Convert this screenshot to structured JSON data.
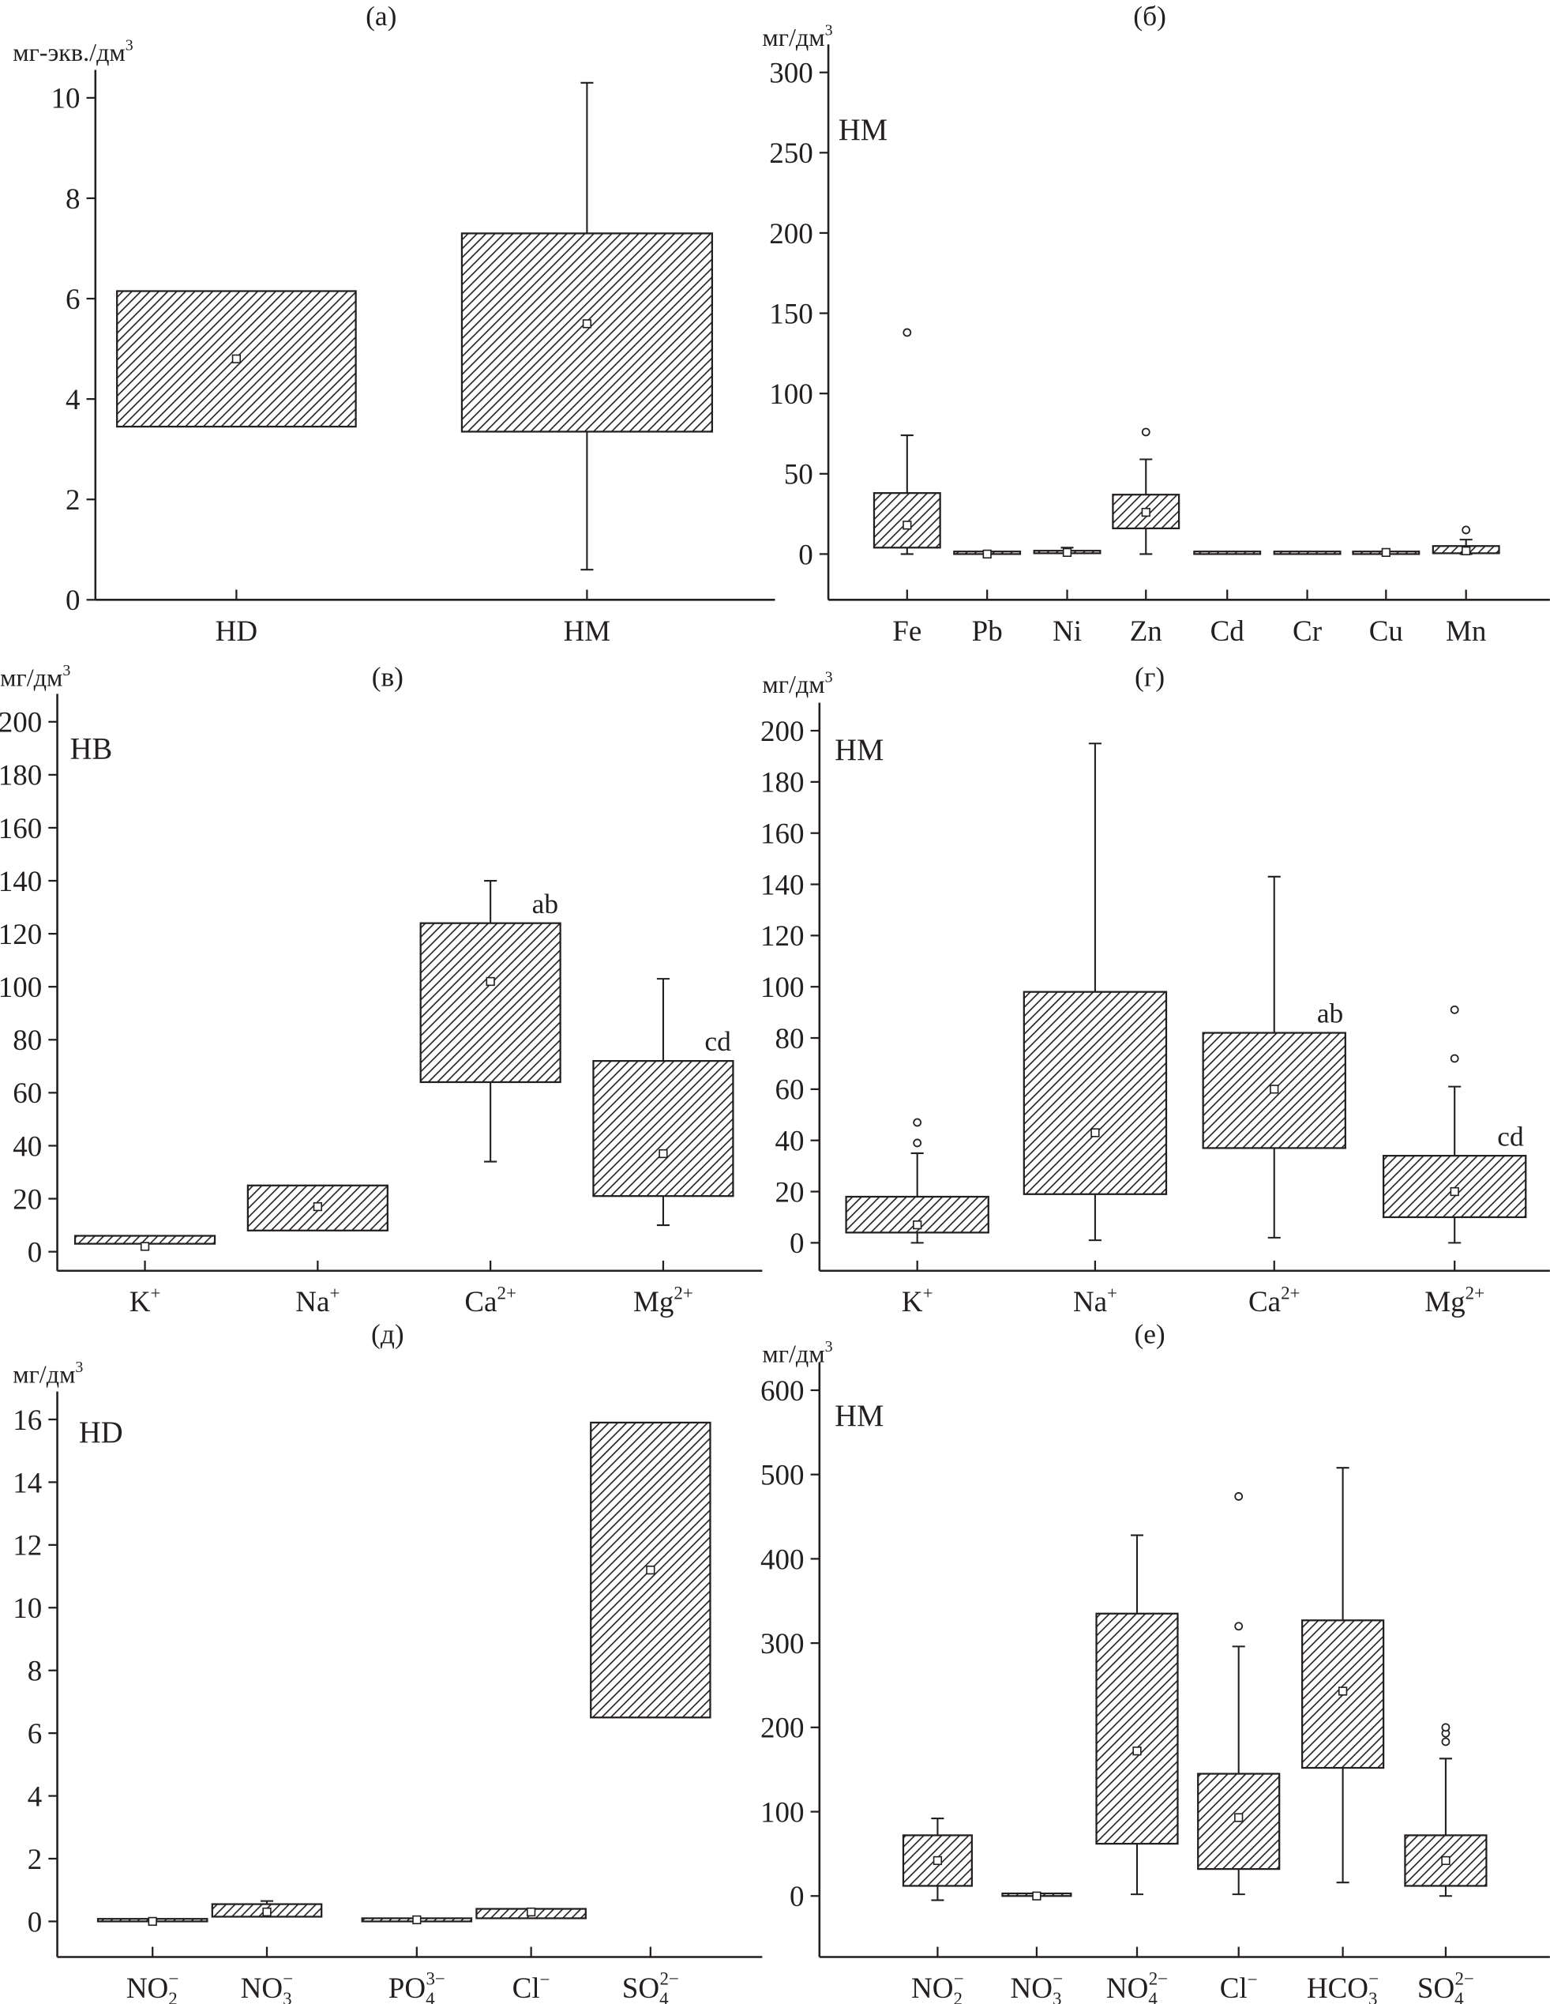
{
  "chart_data": [
    {
      "type": "box",
      "title": "(а)",
      "ylabel": {
        "base": "мг-экв./дм",
        "sup": "3"
      },
      "group_label": "",
      "ylim": [
        0,
        10.5
      ],
      "yticks": [
        0,
        2,
        4,
        6,
        8,
        10
      ],
      "categories": [
        {
          "base": "HD"
        },
        {
          "base": "HM"
        }
      ],
      "boxes": [
        {
          "q1": 3.45,
          "q3": 6.15,
          "mean": 4.8
        },
        {
          "q1": 3.35,
          "q3": 7.3,
          "mean": 5.5,
          "whisker_low": 0.6,
          "whisker_high": 10.3
        }
      ]
    },
    {
      "type": "box",
      "title": "(б)",
      "ylabel": {
        "base": "мг/дм",
        "sup": "3"
      },
      "group_label": "HM",
      "ylim": [
        -28,
        300
      ],
      "yticks": [
        0,
        50,
        100,
        150,
        200,
        250,
        300
      ],
      "categories": [
        {
          "base": "Fe"
        },
        {
          "base": "Pb"
        },
        {
          "base": "Ni"
        },
        {
          "base": "Zn"
        },
        {
          "base": "Cd"
        },
        {
          "base": "Cr"
        },
        {
          "base": "Cu"
        },
        {
          "base": "Mn"
        }
      ],
      "boxes": [
        {
          "q1": 4,
          "q3": 38,
          "mean": 18,
          "whisker_low": 0,
          "whisker_high": 74,
          "outliers": [
            138
          ]
        },
        {
          "q1": 0,
          "q3": 0,
          "mean": 0
        },
        {
          "q1": 0.5,
          "q3": 2,
          "mean": 1,
          "whisker_high": 4
        },
        {
          "q1": 16,
          "q3": 37,
          "mean": 26,
          "whisker_low": 0,
          "whisker_high": 59,
          "outliers": [
            76
          ]
        },
        {
          "q1": 0,
          "q3": 0
        },
        {
          "q1": 0,
          "q3": 0
        },
        {
          "q1": 0,
          "q3": 1,
          "mean": 1
        },
        {
          "q1": 0.5,
          "q3": 5,
          "mean": 2,
          "whisker_low": 0,
          "whisker_high": 9,
          "outliers": [
            15
          ]
        }
      ]
    },
    {
      "type": "box",
      "title": "(в)",
      "ylabel": {
        "base": "мг/дм",
        "sup": "3"
      },
      "group_label": "НВ",
      "ylim": [
        -8,
        200
      ],
      "yticks": [
        0,
        20,
        40,
        60,
        80,
        100,
        120,
        140,
        160,
        180,
        200
      ],
      "categories": [
        {
          "base": "K",
          "sup": "+"
        },
        {
          "base": "Na",
          "sup": "+"
        },
        {
          "base": "Ca",
          "sup": "2+"
        },
        {
          "base": "Mg",
          "sup": "2+"
        }
      ],
      "boxes": [
        {
          "q1": 3,
          "q3": 6,
          "mean": 2
        },
        {
          "q1": 8,
          "q3": 25,
          "mean": 17
        },
        {
          "q1": 64,
          "q3": 124,
          "mean": 102,
          "whisker_low": 34,
          "whisker_high": 140,
          "annotation": "ab"
        },
        {
          "q1": 21,
          "q3": 72,
          "mean": 37,
          "whisker_low": 10,
          "whisker_high": 103,
          "annotation": "cd"
        }
      ]
    },
    {
      "type": "box",
      "title": "(г)",
      "ylabel": {
        "base": "мг/дм",
        "sup": "3"
      },
      "group_label": "HM",
      "ylim": [
        -10,
        200
      ],
      "yticks": [
        0,
        20,
        40,
        60,
        80,
        100,
        120,
        140,
        160,
        180,
        200
      ],
      "categories": [
        {
          "base": "K",
          "sup": "+"
        },
        {
          "base": "Na",
          "sup": "+"
        },
        {
          "base": "Ca",
          "sup": "2+"
        },
        {
          "base": "Mg",
          "sup": "2+"
        }
      ],
      "boxes": [
        {
          "q1": 4,
          "q3": 18,
          "mean": 7,
          "whisker_low": 0,
          "whisker_high": 35,
          "outliers": [
            39,
            47
          ]
        },
        {
          "q1": 19,
          "q3": 98,
          "mean": 43,
          "whisker_low": 1,
          "whisker_high": 195
        },
        {
          "q1": 37,
          "q3": 82,
          "mean": 60,
          "whisker_low": 2,
          "whisker_high": 143,
          "annotation": "ab"
        },
        {
          "q1": 10,
          "q3": 34,
          "mean": 20,
          "whisker_low": 0,
          "whisker_high": 61,
          "outliers": [
            72,
            91
          ],
          "annotation": "cd"
        }
      ]
    },
    {
      "type": "box",
      "title": "(д)",
      "ylabel": {
        "base": "мг/дм",
        "sup": "3"
      },
      "group_label": "HD",
      "ylim": [
        -1,
        16.5
      ],
      "yticks": [
        0,
        2,
        4,
        6,
        8,
        10,
        12,
        14,
        16
      ],
      "categories": [
        {
          "base": "NO",
          "sub": "2",
          "sup": "−"
        },
        {
          "base": "NO",
          "sub": "3",
          "sup": "−"
        },
        {
          "base": "PO",
          "sub": "4",
          "sup": "3−"
        },
        {
          "base": "Cl",
          "sup": "−"
        },
        {
          "base": "SO",
          "sub": "4",
          "sup": "2−"
        }
      ],
      "boxes": [
        {
          "q1": 0,
          "q3": 0,
          "mean": 0
        },
        {
          "q1": 0.15,
          "q3": 0.55,
          "mean": 0.3,
          "whisker_high": 0.65
        },
        {
          "q1": 0,
          "q3": 0.1,
          "mean": 0.05
        },
        {
          "q1": 0.1,
          "q3": 0.4,
          "mean": 0.3
        },
        {
          "q1": 6.5,
          "q3": 15.9,
          "mean": 11.2
        }
      ]
    },
    {
      "type": "box",
      "title": "(е)",
      "ylabel": {
        "base": "мг/дм",
        "sup": "3"
      },
      "group_label": "HM",
      "ylim": [
        -72,
        600
      ],
      "yticks": [
        0,
        100,
        200,
        300,
        400,
        500,
        600
      ],
      "categories": [
        {
          "base": "NO",
          "sub": "2",
          "sup": "−"
        },
        {
          "base": "NO",
          "sub": "3",
          "sup": "−"
        },
        {
          "base": "NO",
          "sub": "4",
          "sup": "2−"
        },
        {
          "base": "Cl",
          "sup": "−"
        },
        {
          "base": "HCO",
          "sub": "3",
          "sup": "−"
        },
        {
          "base": "SO",
          "sub": "4",
          "sup": "2−"
        }
      ],
      "boxes": [
        {
          "q1": 12,
          "q3": 72,
          "mean": 42,
          "whisker_low": -5,
          "whisker_high": 92
        },
        {
          "q1": 0,
          "q3": 0,
          "mean": 0
        },
        {
          "q1": 62,
          "q3": 335,
          "mean": 172,
          "whisker_low": 2,
          "whisker_high": 428
        },
        {
          "q1": 32,
          "q3": 145,
          "mean": 93,
          "whisker_low": 2,
          "whisker_high": 296,
          "outliers": [
            320,
            474
          ]
        },
        {
          "q1": 152,
          "q3": 327,
          "mean": 243,
          "whisker_low": 16,
          "whisker_high": 508
        },
        {
          "q1": 12,
          "q3": 72,
          "mean": 42,
          "whisker_low": 0,
          "whisker_high": 163,
          "outliers": [
            183,
            193,
            200
          ]
        }
      ]
    }
  ]
}
